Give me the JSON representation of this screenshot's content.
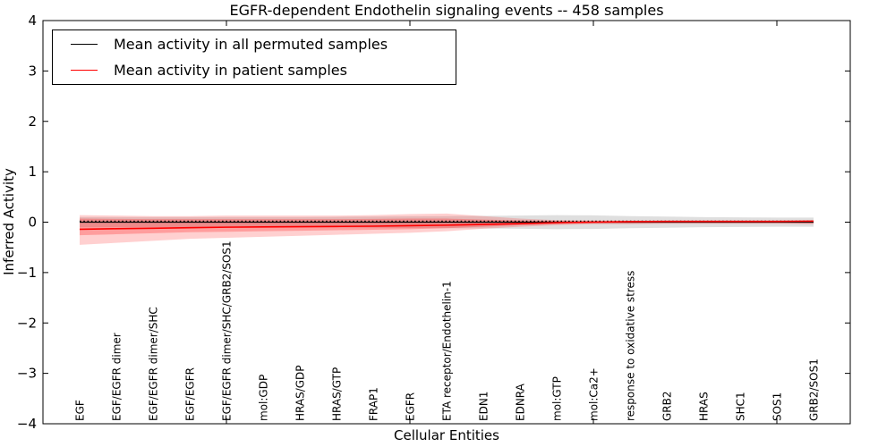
{
  "chart": {
    "title": "EGFR-dependent Endothelin signaling events -- 458 samples",
    "xlabel": "Cellular Entities",
    "ylabel": "Inferred Activity"
  },
  "legend": {
    "items": [
      {
        "label": "Mean activity in all permuted samples",
        "color": "#000000"
      },
      {
        "label": "Mean activity in patient samples",
        "color": "#ff0000"
      }
    ]
  },
  "chart_data": {
    "type": "line",
    "title": "EGFR-dependent Endothelin signaling events -- 458 samples",
    "xlabel": "Cellular Entities",
    "ylabel": "Inferred Activity",
    "ylim": [
      -4,
      4
    ],
    "ytick_labels": [
      "4",
      "3",
      "2",
      "1",
      "0",
      "−1",
      "−2",
      "−3",
      "−4"
    ],
    "ytick_values": [
      4,
      3,
      2,
      1,
      0,
      -1,
      -2,
      -3,
      -4
    ],
    "xtick_unit_positions": [
      5,
      10,
      15,
      20
    ],
    "grid": false,
    "legend_position": "upper left",
    "categories": [
      "EGF",
      "EGF/EGFR dimer",
      "EGF/EGFR dimer/SHC",
      "EGF/EGFR",
      "EGF/EGFR dimer/SHC/GRB2/SOS1",
      "mol:GDP",
      "HRAS/GDP",
      "HRAS/GTP",
      "FRAP1",
      "EGFR",
      "ETA receptor/Endothelin-1",
      "EDN1",
      "EDNRA",
      "mol:GTP",
      "mol:Ca2+",
      "response to oxidative stress",
      "GRB2",
      "HRAS",
      "SHC1",
      "SOS1",
      "GRB2/SOS1"
    ],
    "series": [
      {
        "name": "Mean activity in all permuted samples",
        "color": "#000000",
        "style": "solid",
        "values": [
          0,
          0,
          0,
          0,
          0,
          0,
          0,
          0,
          0,
          0,
          0,
          0,
          0,
          0,
          0,
          0,
          0,
          0,
          0,
          0,
          0
        ]
      },
      {
        "name": "permuted reference (dotted)",
        "color": "#000000",
        "style": "dotted",
        "values": [
          0.02,
          0.02,
          0.02,
          0.02,
          0.02,
          0.02,
          0.02,
          0.02,
          0.02,
          0.02,
          0.02,
          0.02,
          0.02,
          0.02,
          0.02,
          0.02,
          0.02,
          0.02,
          0.02,
          0.02,
          0.02
        ]
      },
      {
        "name": "Mean activity in patient samples",
        "color": "#ff0000",
        "style": "solid",
        "values": [
          -0.14,
          -0.13,
          -0.12,
          -0.11,
          -0.1,
          -0.095,
          -0.09,
          -0.085,
          -0.08,
          -0.07,
          -0.06,
          -0.045,
          -0.03,
          -0.01,
          0.0,
          0.01,
          0.015,
          0.015,
          0.015,
          0.015,
          0.02
        ]
      }
    ],
    "bands": [
      {
        "name": "permuted samples spread",
        "fill": "rgba(150,150,150,0.30)",
        "upper": [
          0.1,
          0.1,
          0.1,
          0.1,
          0.1,
          0.1,
          0.1,
          0.105,
          0.11,
          0.115,
          0.12,
          0.125,
          0.13,
          0.14,
          0.135,
          0.12,
          0.11,
          0.1,
          0.095,
          0.09,
          0.09
        ],
        "lower": [
          -0.1,
          -0.1,
          -0.1,
          -0.1,
          -0.1,
          -0.1,
          -0.1,
          -0.105,
          -0.11,
          -0.115,
          -0.12,
          -0.125,
          -0.13,
          -0.14,
          -0.135,
          -0.12,
          -0.11,
          -0.1,
          -0.095,
          -0.09,
          -0.09
        ]
      },
      {
        "name": "patient samples spread (outer)",
        "fill": "rgba(255,40,40,0.22)",
        "upper": [
          0.14,
          0.13,
          0.12,
          0.12,
          0.13,
          0.13,
          0.13,
          0.13,
          0.14,
          0.16,
          0.17,
          0.12,
          0.07,
          0.04,
          0.03,
          0.03,
          0.03,
          0.03,
          0.03,
          0.03,
          0.04
        ],
        "lower": [
          -0.45,
          -0.41,
          -0.37,
          -0.33,
          -0.31,
          -0.29,
          -0.27,
          -0.25,
          -0.23,
          -0.21,
          -0.18,
          -0.13,
          -0.09,
          -0.06,
          -0.04,
          -0.04,
          -0.03,
          -0.03,
          -0.03,
          -0.03,
          -0.04
        ]
      },
      {
        "name": "patient samples spread (inner)",
        "fill": "rgba(255,40,40,0.30)",
        "upper": [
          0.07,
          0.065,
          0.06,
          0.06,
          0.06,
          0.06,
          0.06,
          0.06,
          0.065,
          0.07,
          0.07,
          0.05,
          0.035,
          0.02,
          0.02,
          0.02,
          0.02,
          0.02,
          0.02,
          0.02,
          0.03
        ],
        "lower": [
          -0.26,
          -0.24,
          -0.22,
          -0.2,
          -0.19,
          -0.18,
          -0.17,
          -0.16,
          -0.15,
          -0.14,
          -0.12,
          -0.09,
          -0.06,
          -0.04,
          -0.02,
          -0.02,
          -0.015,
          -0.015,
          -0.015,
          -0.015,
          -0.02
        ]
      }
    ]
  }
}
